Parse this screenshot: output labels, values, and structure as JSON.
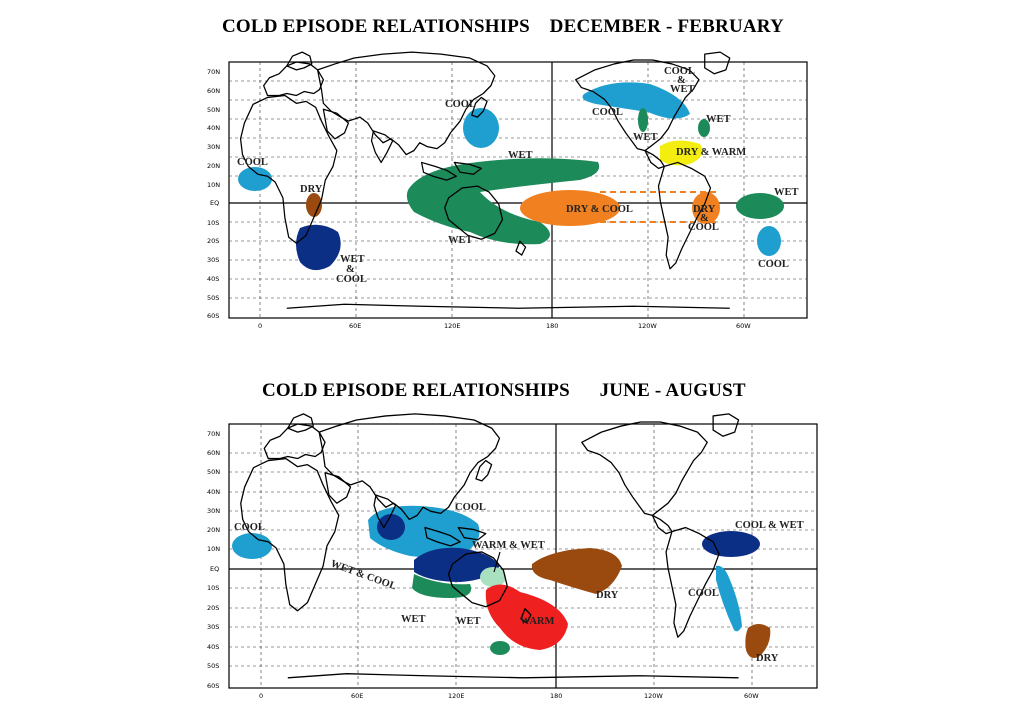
{
  "colors": {
    "cool": "#1f9fcf",
    "wet": "#1d8a5a",
    "dry": "#9a4a0e",
    "dry_cool": "#f08020",
    "dry_warm": "#f4ee10",
    "wet_cool": "#0c2f86",
    "warm": "#ee2020",
    "warm_wet": "#a8e0c0"
  },
  "axes": {
    "lat_ticks": [
      "70N",
      "60N",
      "50N",
      "40N",
      "30N",
      "20N",
      "10N",
      "EQ",
      "10S",
      "20S",
      "30S",
      "40S",
      "50S",
      "60S"
    ],
    "lon_ticks": [
      "0",
      "60E",
      "120E",
      "180",
      "120W",
      "60W"
    ]
  },
  "maps": [
    {
      "title": "COLD EPISODE RELATIONSHIPS    DECEMBER - FEBRUARY",
      "labels": {
        "cool_africa": "COOL",
        "dry_east_africa": "DRY",
        "wet_cool_south_africa": "WET\n&\nCOOL",
        "cool_japan": "COOL",
        "wet_maritime": "WET",
        "wet_australia": "WET",
        "dry_cool_pacific": "DRY & COOL",
        "cool_wet_nw": "COOL\n&\nWET",
        "cool_canada": "COOL",
        "wet_ohio": "WET",
        "wet_west_us": "WET",
        "dry_warm_se_us": "DRY & WARM",
        "dry_cool_east_pacific": "DRY\n&\nCOOL",
        "wet_nsa": "WET",
        "cool_se_sa": "COOL"
      }
    },
    {
      "title": "COLD EPISODE RELATIONSHIPS      JUNE - AUGUST",
      "labels": {
        "cool_africa": "COOL",
        "cool_se_asia": "COOL",
        "wet_cool_india": "WET & COOL",
        "warm_wet": "WARM & WET",
        "dry_pacific": "DRY",
        "wet_indonesia": "WET",
        "wet_australia": "WET",
        "warm_australia": "WARM",
        "cool_wet_central_america": "COOL & WET",
        "cool_sa": "COOL",
        "dry_sa": "DRY"
      }
    }
  ]
}
